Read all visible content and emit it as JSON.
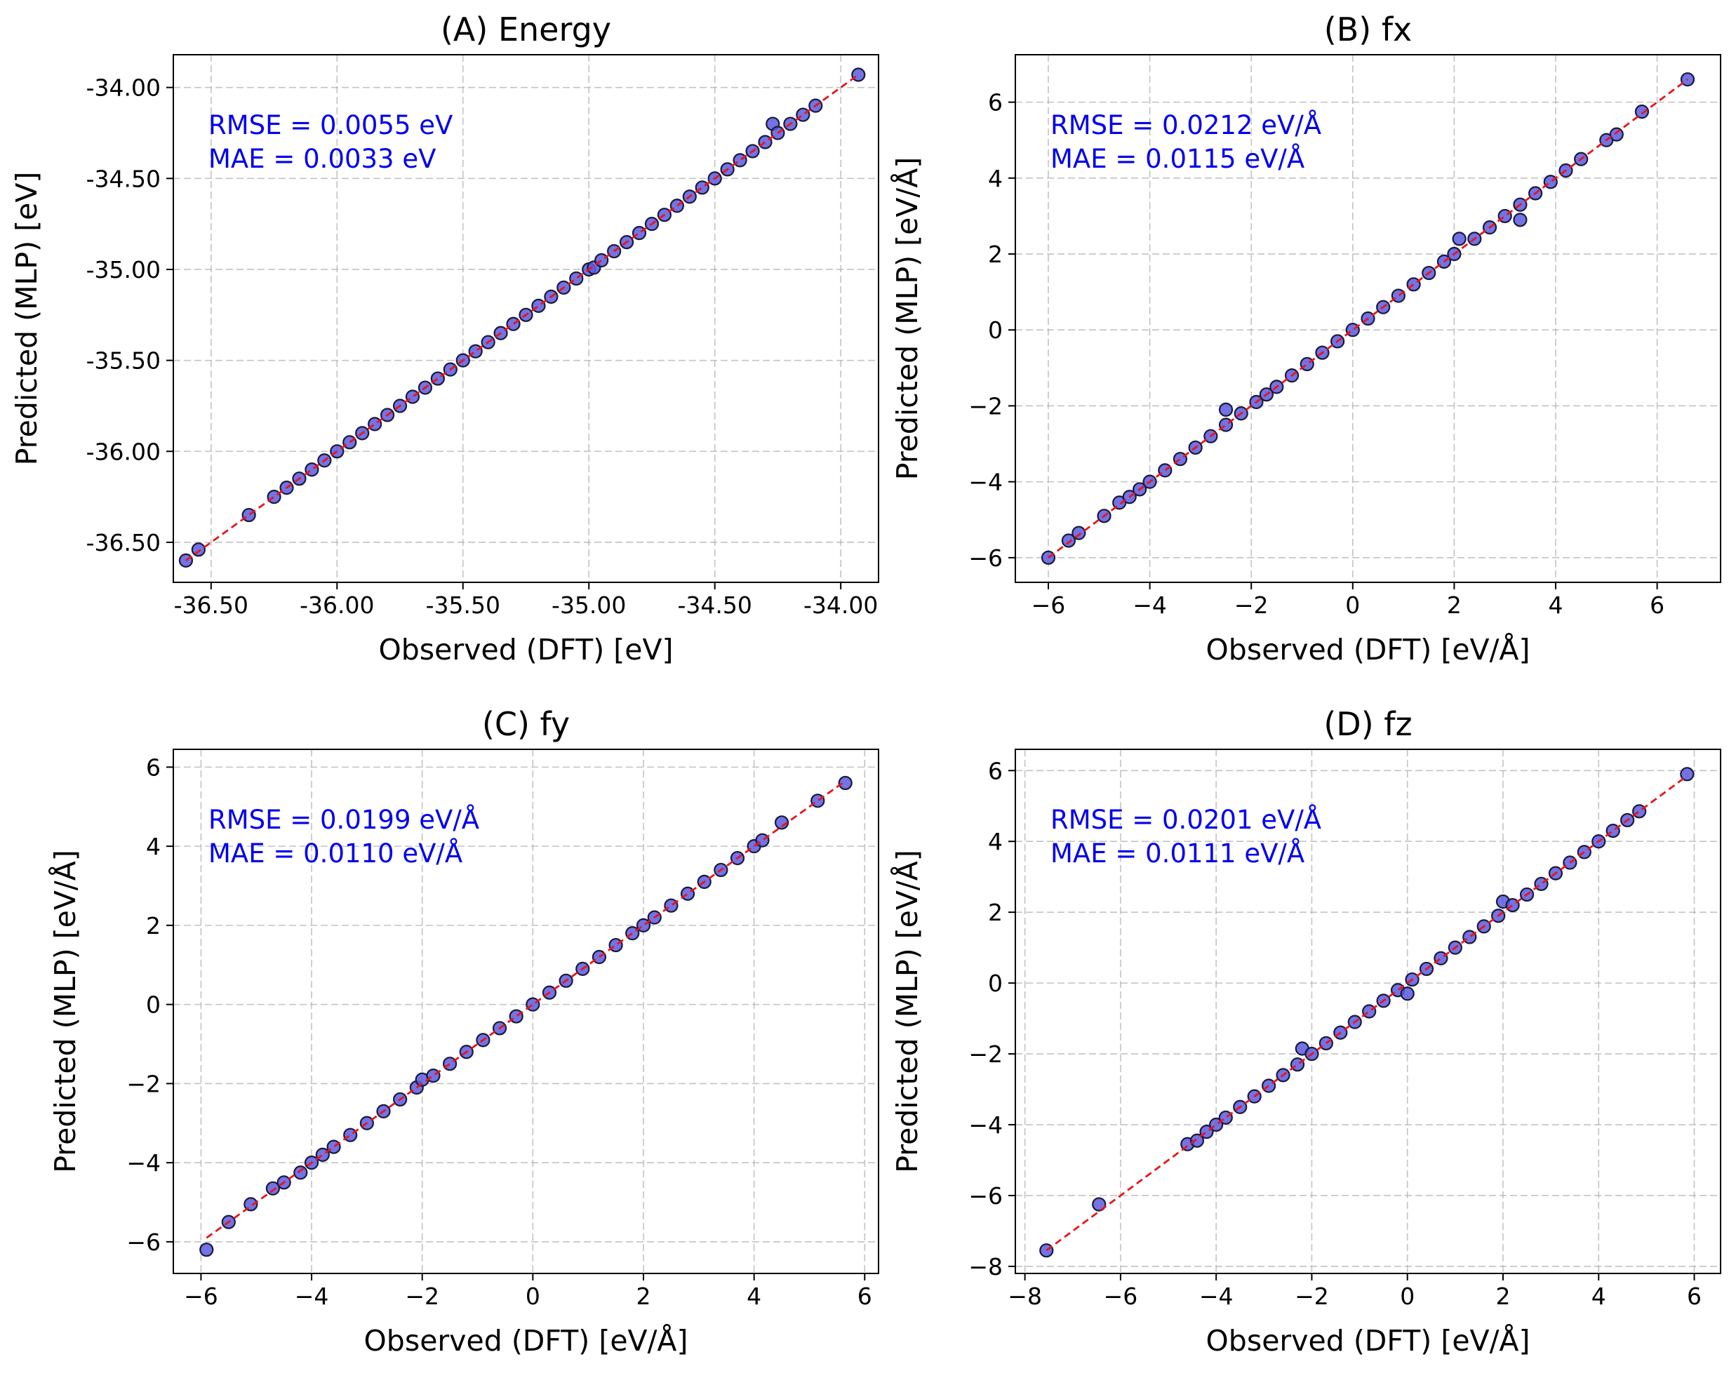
{
  "chart_data": [
    {
      "type": "scatter",
      "title": "(A) Energy",
      "xlabel": "Observed (DFT) [eV]",
      "ylabel": "Predicted (MLP) [eV]",
      "xlim": [
        -36.65,
        -33.85
      ],
      "ylim": [
        -36.72,
        -33.82
      ],
      "xticks": [
        -36.5,
        -36.0,
        -35.5,
        -35.0,
        -34.5,
        -34.0
      ],
      "yticks": [
        -36.5,
        -36.0,
        -35.5,
        -35.0,
        -34.5,
        -34.0
      ],
      "tick_labels": [
        "-36.50",
        "-36.00",
        "-35.50",
        "-35.00",
        "-34.50",
        "-34.00"
      ],
      "grid": true,
      "annotation": [
        "RMSE = 0.0055 eV",
        "MAE = 0.0033 eV"
      ],
      "series": [
        {
          "x": [
            -36.6,
            -36.55,
            -36.35,
            -36.25,
            -36.2,
            -36.15,
            -36.1,
            -36.05,
            -36.0,
            -35.95,
            -35.9,
            -35.85,
            -35.8,
            -35.75,
            -35.7,
            -35.65,
            -35.6,
            -35.55,
            -35.5,
            -35.45,
            -35.4,
            -35.35,
            -35.3,
            -35.25,
            -35.2,
            -35.15,
            -35.1,
            -35.05,
            -35.0,
            -34.98,
            -34.95,
            -34.9,
            -34.85,
            -34.8,
            -34.75,
            -34.7,
            -34.65,
            -34.6,
            -34.55,
            -34.5,
            -34.45,
            -34.4,
            -34.35,
            -34.3,
            -34.27,
            -34.25,
            -34.2,
            -34.15,
            -34.1,
            -33.93
          ],
          "y": [
            -36.6,
            -36.54,
            -36.35,
            -36.25,
            -36.2,
            -36.15,
            -36.1,
            -36.05,
            -36.0,
            -35.95,
            -35.9,
            -35.85,
            -35.8,
            -35.75,
            -35.7,
            -35.65,
            -35.6,
            -35.55,
            -35.5,
            -35.45,
            -35.4,
            -35.35,
            -35.3,
            -35.25,
            -35.2,
            -35.15,
            -35.1,
            -35.05,
            -35.0,
            -34.99,
            -34.95,
            -34.9,
            -34.85,
            -34.8,
            -34.75,
            -34.7,
            -34.65,
            -34.6,
            -34.55,
            -34.5,
            -34.45,
            -34.4,
            -34.35,
            -34.3,
            -34.2,
            -34.25,
            -34.2,
            -34.15,
            -34.1,
            -33.93
          ]
        }
      ],
      "reference_line": [
        [
          -36.6,
          -36.6
        ],
        [
          -33.93,
          -33.93
        ]
      ]
    },
    {
      "type": "scatter",
      "title": "(B) fx",
      "xlabel": "Observed (DFT) [eV/Å]",
      "ylabel": "Predicted (MLP) [eV/Å]",
      "xlim": [
        -6.65,
        7.25
      ],
      "ylim": [
        -6.65,
        7.25
      ],
      "xticks": [
        -6,
        -4,
        -2,
        0,
        2,
        4,
        6
      ],
      "yticks": [
        -6,
        -4,
        -2,
        0,
        2,
        4,
        6
      ],
      "tick_labels": [
        "−6",
        "−4",
        "−2",
        "0",
        "2",
        "4",
        "6"
      ],
      "grid": true,
      "annotation": [
        "RMSE = 0.0212 eV/Å",
        "MAE = 0.0115 eV/Å"
      ],
      "series": [
        {
          "x": [
            -6.0,
            -5.6,
            -5.4,
            -4.9,
            -4.6,
            -4.4,
            -4.2,
            -4.0,
            -3.7,
            -3.4,
            -3.1,
            -2.8,
            -2.5,
            -2.5,
            -2.2,
            -1.9,
            -1.7,
            -1.5,
            -1.2,
            -0.9,
            -0.6,
            -0.3,
            0.0,
            0.3,
            0.6,
            0.9,
            1.2,
            1.5,
            1.8,
            2.0,
            2.1,
            2.4,
            2.7,
            3.0,
            3.3,
            3.3,
            3.6,
            3.9,
            4.2,
            4.5,
            5.0,
            5.2,
            5.7,
            6.6
          ],
          "y": [
            -6.0,
            -5.55,
            -5.35,
            -4.9,
            -4.55,
            -4.4,
            -4.2,
            -4.0,
            -3.7,
            -3.4,
            -3.1,
            -2.8,
            -2.5,
            -2.1,
            -2.2,
            -1.9,
            -1.7,
            -1.5,
            -1.2,
            -0.9,
            -0.6,
            -0.3,
            0.0,
            0.3,
            0.6,
            0.9,
            1.2,
            1.5,
            1.8,
            2.0,
            2.4,
            2.4,
            2.7,
            3.0,
            3.3,
            2.9,
            3.6,
            3.9,
            4.2,
            4.5,
            5.0,
            5.15,
            5.75,
            6.6
          ]
        }
      ],
      "reference_line": [
        [
          -6.0,
          -6.0
        ],
        [
          6.6,
          6.6
        ]
      ]
    },
    {
      "type": "scatter",
      "title": "(C) fy",
      "xlabel": "Observed (DFT) [eV/Å]",
      "ylabel": "Predicted (MLP) [eV/Å]",
      "xlim": [
        -6.5,
        6.25
      ],
      "ylim": [
        -6.8,
        6.45
      ],
      "xticks": [
        -6,
        -4,
        -2,
        0,
        2,
        4,
        6
      ],
      "yticks": [
        -6,
        -4,
        -2,
        0,
        2,
        4,
        6
      ],
      "tick_labels": [
        "−6",
        "−4",
        "−2",
        "0",
        "2",
        "4",
        "6"
      ],
      "grid": true,
      "annotation": [
        "RMSE = 0.0199 eV/Å",
        "MAE = 0.0110 eV/Å"
      ],
      "series": [
        {
          "x": [
            -5.9,
            -5.5,
            -5.1,
            -4.7,
            -4.5,
            -4.2,
            -4.0,
            -3.8,
            -3.6,
            -3.3,
            -3.0,
            -2.7,
            -2.4,
            -2.1,
            -2.0,
            -1.8,
            -1.5,
            -1.2,
            -0.9,
            -0.6,
            -0.3,
            0.0,
            0.3,
            0.6,
            0.9,
            1.2,
            1.5,
            1.8,
            2.0,
            2.2,
            2.5,
            2.8,
            3.1,
            3.4,
            3.7,
            4.0,
            4.15,
            4.5,
            5.15,
            5.65
          ],
          "y": [
            -6.2,
            -5.5,
            -5.05,
            -4.65,
            -4.5,
            -4.25,
            -4.0,
            -3.8,
            -3.6,
            -3.3,
            -3.0,
            -2.7,
            -2.4,
            -2.1,
            -1.9,
            -1.8,
            -1.5,
            -1.2,
            -0.9,
            -0.6,
            -0.3,
            0.0,
            0.3,
            0.6,
            0.9,
            1.2,
            1.5,
            1.8,
            2.0,
            2.2,
            2.5,
            2.8,
            3.1,
            3.4,
            3.7,
            4.0,
            4.15,
            4.6,
            5.15,
            5.6
          ]
        }
      ],
      "reference_line": [
        [
          -5.9,
          -5.9
        ],
        [
          5.65,
          5.65
        ]
      ]
    },
    {
      "type": "scatter",
      "title": "(D) fz",
      "xlabel": "Observed (DFT) [eV/Å]",
      "ylabel": "Predicted (MLP) [eV/Å]",
      "xlim": [
        -8.2,
        6.55
      ],
      "ylim": [
        -8.2,
        6.6
      ],
      "xticks": [
        -8,
        -6,
        -4,
        -2,
        0,
        2,
        4,
        6
      ],
      "yticks": [
        -8,
        -6,
        -4,
        -2,
        0,
        2,
        4,
        6
      ],
      "tick_labels": [
        "−8",
        "−6",
        "−4",
        "−2",
        "0",
        "2",
        "4",
        "6"
      ],
      "grid": true,
      "annotation": [
        "RMSE = 0.0201 eV/Å",
        "MAE = 0.0111 eV/Å"
      ],
      "series": [
        {
          "x": [
            -7.55,
            -6.45,
            -4.6,
            -4.4,
            -4.2,
            -4.0,
            -3.8,
            -3.5,
            -3.2,
            -2.9,
            -2.6,
            -2.3,
            -2.2,
            -2.0,
            -1.7,
            -1.4,
            -1.1,
            -0.8,
            -0.5,
            -0.2,
            0.0,
            0.1,
            0.4,
            0.7,
            1.0,
            1.3,
            1.6,
            1.9,
            2.0,
            2.2,
            2.5,
            2.8,
            3.1,
            3.4,
            3.7,
            4.0,
            4.3,
            4.6,
            4.85,
            5.85
          ],
          "y": [
            -7.55,
            -6.25,
            -4.55,
            -4.45,
            -4.2,
            -4.0,
            -3.8,
            -3.5,
            -3.2,
            -2.9,
            -2.6,
            -2.3,
            -1.85,
            -2.0,
            -1.7,
            -1.4,
            -1.1,
            -0.8,
            -0.5,
            -0.2,
            -0.3,
            0.1,
            0.4,
            0.7,
            1.0,
            1.3,
            1.6,
            1.9,
            2.3,
            2.2,
            2.5,
            2.8,
            3.1,
            3.4,
            3.7,
            4.0,
            4.3,
            4.6,
            4.85,
            5.9
          ]
        }
      ],
      "reference_line": [
        [
          -7.55,
          -7.55
        ],
        [
          5.85,
          5.85
        ]
      ]
    }
  ]
}
